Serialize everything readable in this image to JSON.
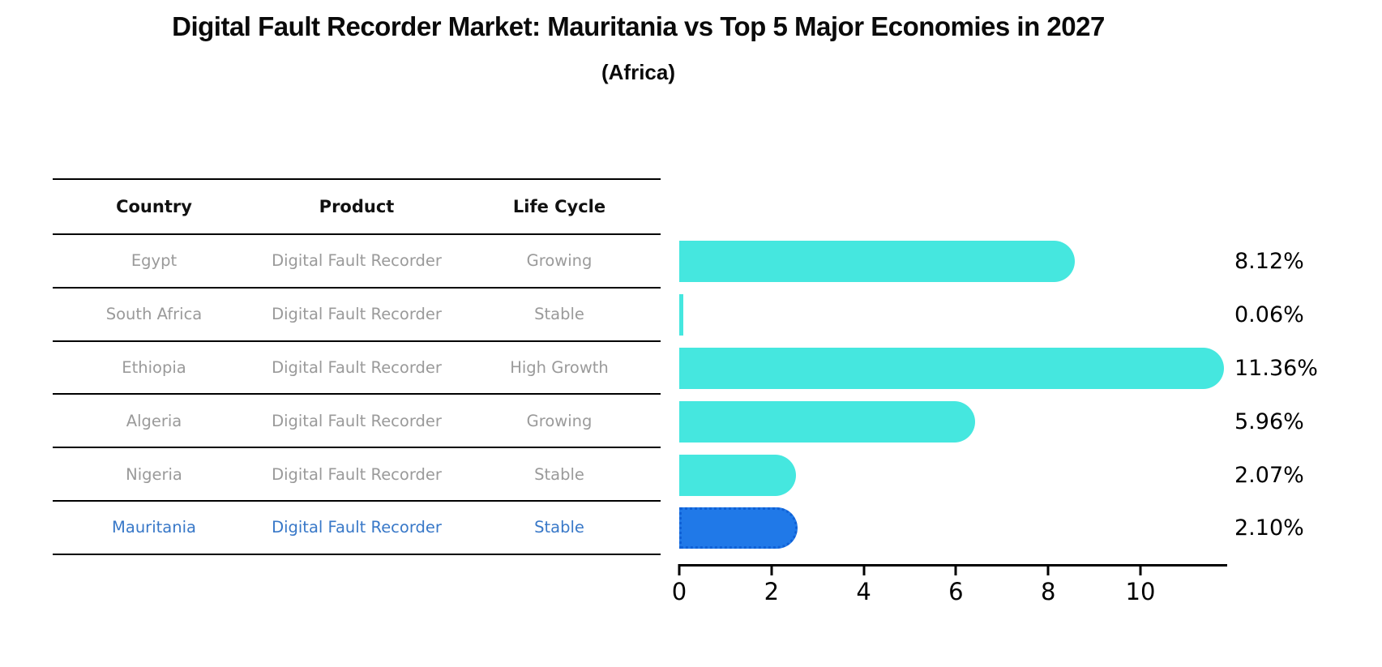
{
  "title": "Digital Fault Recorder Market: Mauritania vs Top 5 Major Economies in 2027",
  "subtitle": "(Africa)",
  "table": {
    "columns": [
      "Country",
      "Product",
      "Life Cycle"
    ]
  },
  "rows": [
    {
      "country": "Egypt",
      "product": "Digital Fault Recorder",
      "life_cycle": "Growing",
      "share": "8.12%",
      "value": 8.12,
      "highlight": false
    },
    {
      "country": "South Africa",
      "product": "Digital Fault Recorder",
      "life_cycle": "Stable",
      "share": "0.06%",
      "value": 0.06,
      "highlight": false
    },
    {
      "country": "Ethiopia",
      "product": "Digital Fault Recorder",
      "life_cycle": "High Growth",
      "share": "11.36%",
      "value": 11.36,
      "highlight": false
    },
    {
      "country": "Algeria",
      "product": "Digital Fault Recorder",
      "life_cycle": "Growing",
      "share": "5.96%",
      "value": 5.96,
      "highlight": false
    },
    {
      "country": "Nigeria",
      "product": "Digital Fault Recorder",
      "life_cycle": "Stable",
      "share": "2.07%",
      "value": 2.07,
      "highlight": false
    },
    {
      "country": "Mauritania",
      "product": "Digital Fault Recorder",
      "life_cycle": "Stable",
      "share": "2.10%",
      "value": 2.1,
      "highlight": true
    }
  ],
  "axis": {
    "ticks": [
      "0",
      "2",
      "4",
      "6",
      "8",
      "10"
    ]
  },
  "colors": {
    "bar": "#45E7DF",
    "highlight_bar": "#2079E8",
    "highlight_border": "#1061D6",
    "highlight_text": "#3878C8",
    "row_text": "#9A9A9A",
    "line": "#000000"
  },
  "chart_data": {
    "type": "bar",
    "orientation": "horizontal",
    "title": "Digital Fault Recorder Market: Mauritania vs Top 5 Major Economies in 2027",
    "subtitle": "(Africa)",
    "categories": [
      "Egypt",
      "South Africa",
      "Ethiopia",
      "Algeria",
      "Nigeria",
      "Mauritania"
    ],
    "values": [
      8.12,
      0.06,
      11.36,
      5.96,
      2.07,
      2.1
    ],
    "data_labels": [
      "8.12%",
      "0.06%",
      "11.36%",
      "5.96%",
      "2.07%",
      "2.10%"
    ],
    "series_meta": {
      "product": "Digital Fault Recorder",
      "life_cycle": [
        "Growing",
        "Stable",
        "High Growth",
        "Growing",
        "Stable",
        "Stable"
      ]
    },
    "xlabel": "",
    "ylabel": "",
    "xlim": [
      0,
      11.9
    ],
    "xticks": [
      0,
      2,
      4,
      6,
      8,
      10
    ],
    "grid": false,
    "legend": false,
    "highlighted_category": "Mauritania"
  }
}
